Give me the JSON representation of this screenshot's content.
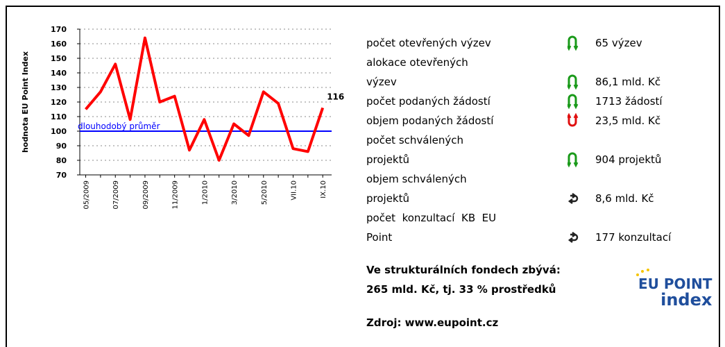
{
  "chart_data": {
    "type": "line",
    "y_label": "hodnota EU Point Index",
    "categories": [
      "05/2009",
      null,
      "07/2009",
      null,
      "09/2009",
      null,
      "11/2009",
      null,
      "1/2010",
      null,
      "3/2010",
      null,
      "5/2010",
      null,
      "VII.10",
      null,
      "IX.10"
    ],
    "series": [
      {
        "name": "EU Point Index",
        "color": "#ff0000",
        "values": [
          115,
          127,
          146,
          108,
          164,
          120,
          124,
          87,
          108,
          80,
          105,
          97,
          127,
          119,
          88,
          86,
          116
        ]
      }
    ],
    "ylim": [
      70,
      170
    ],
    "yticks": [
      70,
      80,
      90,
      100,
      110,
      120,
      130,
      140,
      150,
      160,
      170
    ],
    "grid": true,
    "reference": {
      "value": 100,
      "label": "dlouhodobý průměr",
      "color": "#0000ff"
    }
  },
  "indicators": [
    {
      "name_lines": [
        "počet otevřených výzev"
      ],
      "trend": "up",
      "value": "65 výzev"
    },
    {
      "name_lines": [
        "alokace otevřených",
        "výzev"
      ],
      "trend": "up",
      "value": "86,1 mld. Kč"
    },
    {
      "name_lines": [
        "počet podaných žádostí"
      ],
      "trend": "up",
      "value": "1713 žádostí"
    },
    {
      "name_lines": [
        "objem podaných žádostí"
      ],
      "trend": "down",
      "value": "23,5 mld. Kč"
    },
    {
      "name_lines": [
        "počet schválených",
        "projektů"
      ],
      "trend": "up",
      "value": "904 projektů"
    },
    {
      "name_lines": [
        "objem schválených",
        "projektů"
      ],
      "trend": "neutral",
      "value": "8,6 mld. Kč"
    },
    {
      "name_lines": [
        "počet  konzultací  KB  EU",
        "Point"
      ],
      "trend": "neutral",
      "value": "177 konzultací"
    }
  ],
  "summary": [
    "Ve strukturálních fondech zbývá:",
    "265 mld. Kč, tj. 33 % prostředků"
  ],
  "source": "Zdroj: www.eupoint.cz",
  "logo": {
    "line1": "EU POINT",
    "line2": "index"
  }
}
